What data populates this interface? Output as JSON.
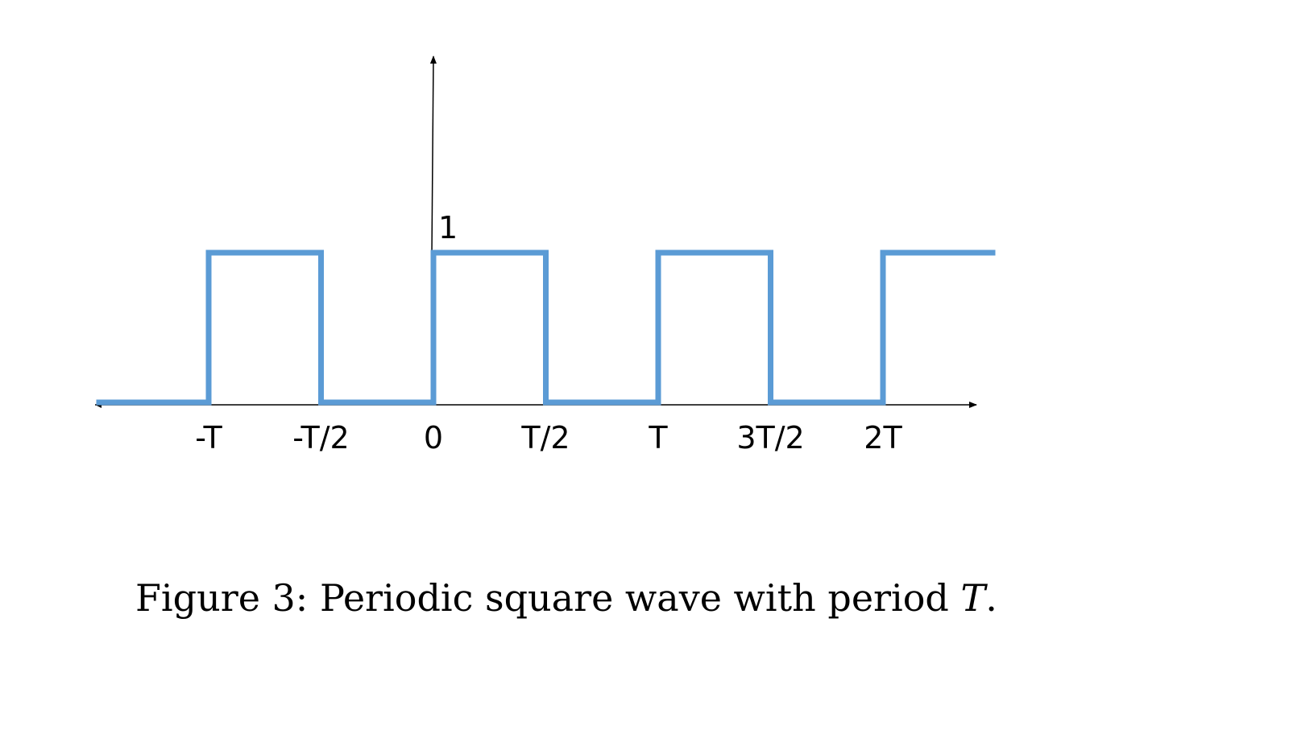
{
  "chart_data": {
    "type": "line",
    "step": true,
    "x_ticks": [
      {
        "value": -1.0,
        "label": "-T"
      },
      {
        "value": -0.5,
        "label": "-T/2"
      },
      {
        "value": 0.0,
        "label": "0"
      },
      {
        "value": 0.5,
        "label": "T/2"
      },
      {
        "value": 1.0,
        "label": "T"
      },
      {
        "value": 1.5,
        "label": "3T/2"
      },
      {
        "value": 2.0,
        "label": "2T"
      }
    ],
    "y_tick_label": "1",
    "y_tick_value": 1,
    "xlim": [
      -1.5,
      2.5
    ],
    "ylim": [
      0,
      1
    ],
    "series": [
      {
        "points": [
          [
            -1.5,
            0
          ],
          [
            -1.0,
            0
          ],
          [
            -1.0,
            1
          ],
          [
            -0.5,
            1
          ],
          [
            -0.5,
            0
          ],
          [
            0.0,
            0
          ],
          [
            0.0,
            1
          ],
          [
            0.5,
            1
          ],
          [
            0.5,
            0
          ],
          [
            1.0,
            0
          ],
          [
            1.0,
            1
          ],
          [
            1.5,
            1
          ],
          [
            1.5,
            0
          ],
          [
            2.0,
            0
          ],
          [
            2.0,
            1
          ],
          [
            2.5,
            1
          ]
        ],
        "color": "#5b9bd5"
      }
    ],
    "grid": false
  },
  "caption": {
    "prefix": "Figure 3:",
    "text": "Periodic square wave with period",
    "variable": "T",
    "suffix": "."
  }
}
